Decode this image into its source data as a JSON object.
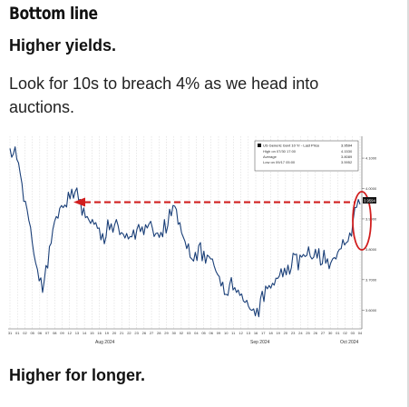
{
  "article": {
    "title": "Bottom line",
    "subtitle": "Higher yields.",
    "paragraph": "Look for 10s to breach 4% as we head into auctions.",
    "footer": "Higher for longer."
  },
  "chart_data": {
    "type": "line",
    "legend": {
      "series_name": "US Generic Govt 10 Yr - Last Price",
      "last_value": "3.9594",
      "high_label": "High on 07/30 17:00",
      "high_value": "4.1530",
      "avg_label": "Average",
      "avg_value": "3.8089",
      "low_label": "Low on 09/17 05:00",
      "low_value": "3.5952"
    },
    "y_ticks": [
      "4.1000",
      "4.0000",
      "3.9000",
      "3.8000",
      "3.7000",
      "3.6000"
    ],
    "ylim": [
      3.55,
      4.16
    ],
    "last_price_tag": "3.9594",
    "month_labels": [
      "Aug 2024",
      "Sep 2024",
      "Oct 2024"
    ],
    "day_ticks": [
      "31",
      "01",
      "02",
      "05",
      "06",
      "07",
      "08",
      "09",
      "12",
      "13",
      "14",
      "15",
      "16",
      "19",
      "20",
      "21",
      "22",
      "23",
      "26",
      "27",
      "28",
      "29",
      "30",
      "02",
      "03",
      "04",
      "05",
      "06",
      "09",
      "10",
      "11",
      "12",
      "13",
      "16",
      "17",
      "18",
      "19",
      "20",
      "23",
      "24",
      "25",
      "26",
      "27",
      "30",
      "01",
      "02",
      "03",
      "04"
    ],
    "series": [
      {
        "name": "US Generic Govt 10 Yr",
        "values": [
          4.15,
          4.12,
          4.09,
          4.03,
          3.97,
          3.93,
          3.86,
          3.8,
          3.74,
          3.7,
          3.68,
          3.75,
          3.82,
          3.88,
          3.92,
          3.95,
          3.94,
          3.97,
          4.01,
          3.99,
          3.95,
          3.93,
          3.91,
          3.89,
          3.88,
          3.9,
          3.87,
          3.84,
          3.86,
          3.87,
          3.85,
          3.88,
          3.86,
          3.85,
          3.84,
          3.86,
          3.87,
          3.86,
          3.84,
          3.86,
          3.87,
          3.88,
          3.86,
          3.86,
          3.85,
          3.88,
          3.89,
          3.91,
          3.93,
          3.9,
          3.86,
          3.82,
          3.8,
          3.78,
          3.79,
          3.8,
          3.78,
          3.76,
          3.77,
          3.75,
          3.74,
          3.71,
          3.68,
          3.67,
          3.69,
          3.66,
          3.64,
          3.66,
          3.63,
          3.62,
          3.62,
          3.61,
          3.6,
          3.62,
          3.64,
          3.67,
          3.66,
          3.7,
          3.71,
          3.73,
          3.72,
          3.76,
          3.74,
          3.77,
          3.75,
          3.78,
          3.77,
          3.79,
          3.78,
          3.8,
          3.79,
          3.77,
          3.76,
          3.73,
          3.75,
          3.78,
          3.8,
          3.82,
          3.84,
          3.86,
          3.89,
          3.92,
          3.96
        ]
      }
    ],
    "reference_level": 3.955
  }
}
